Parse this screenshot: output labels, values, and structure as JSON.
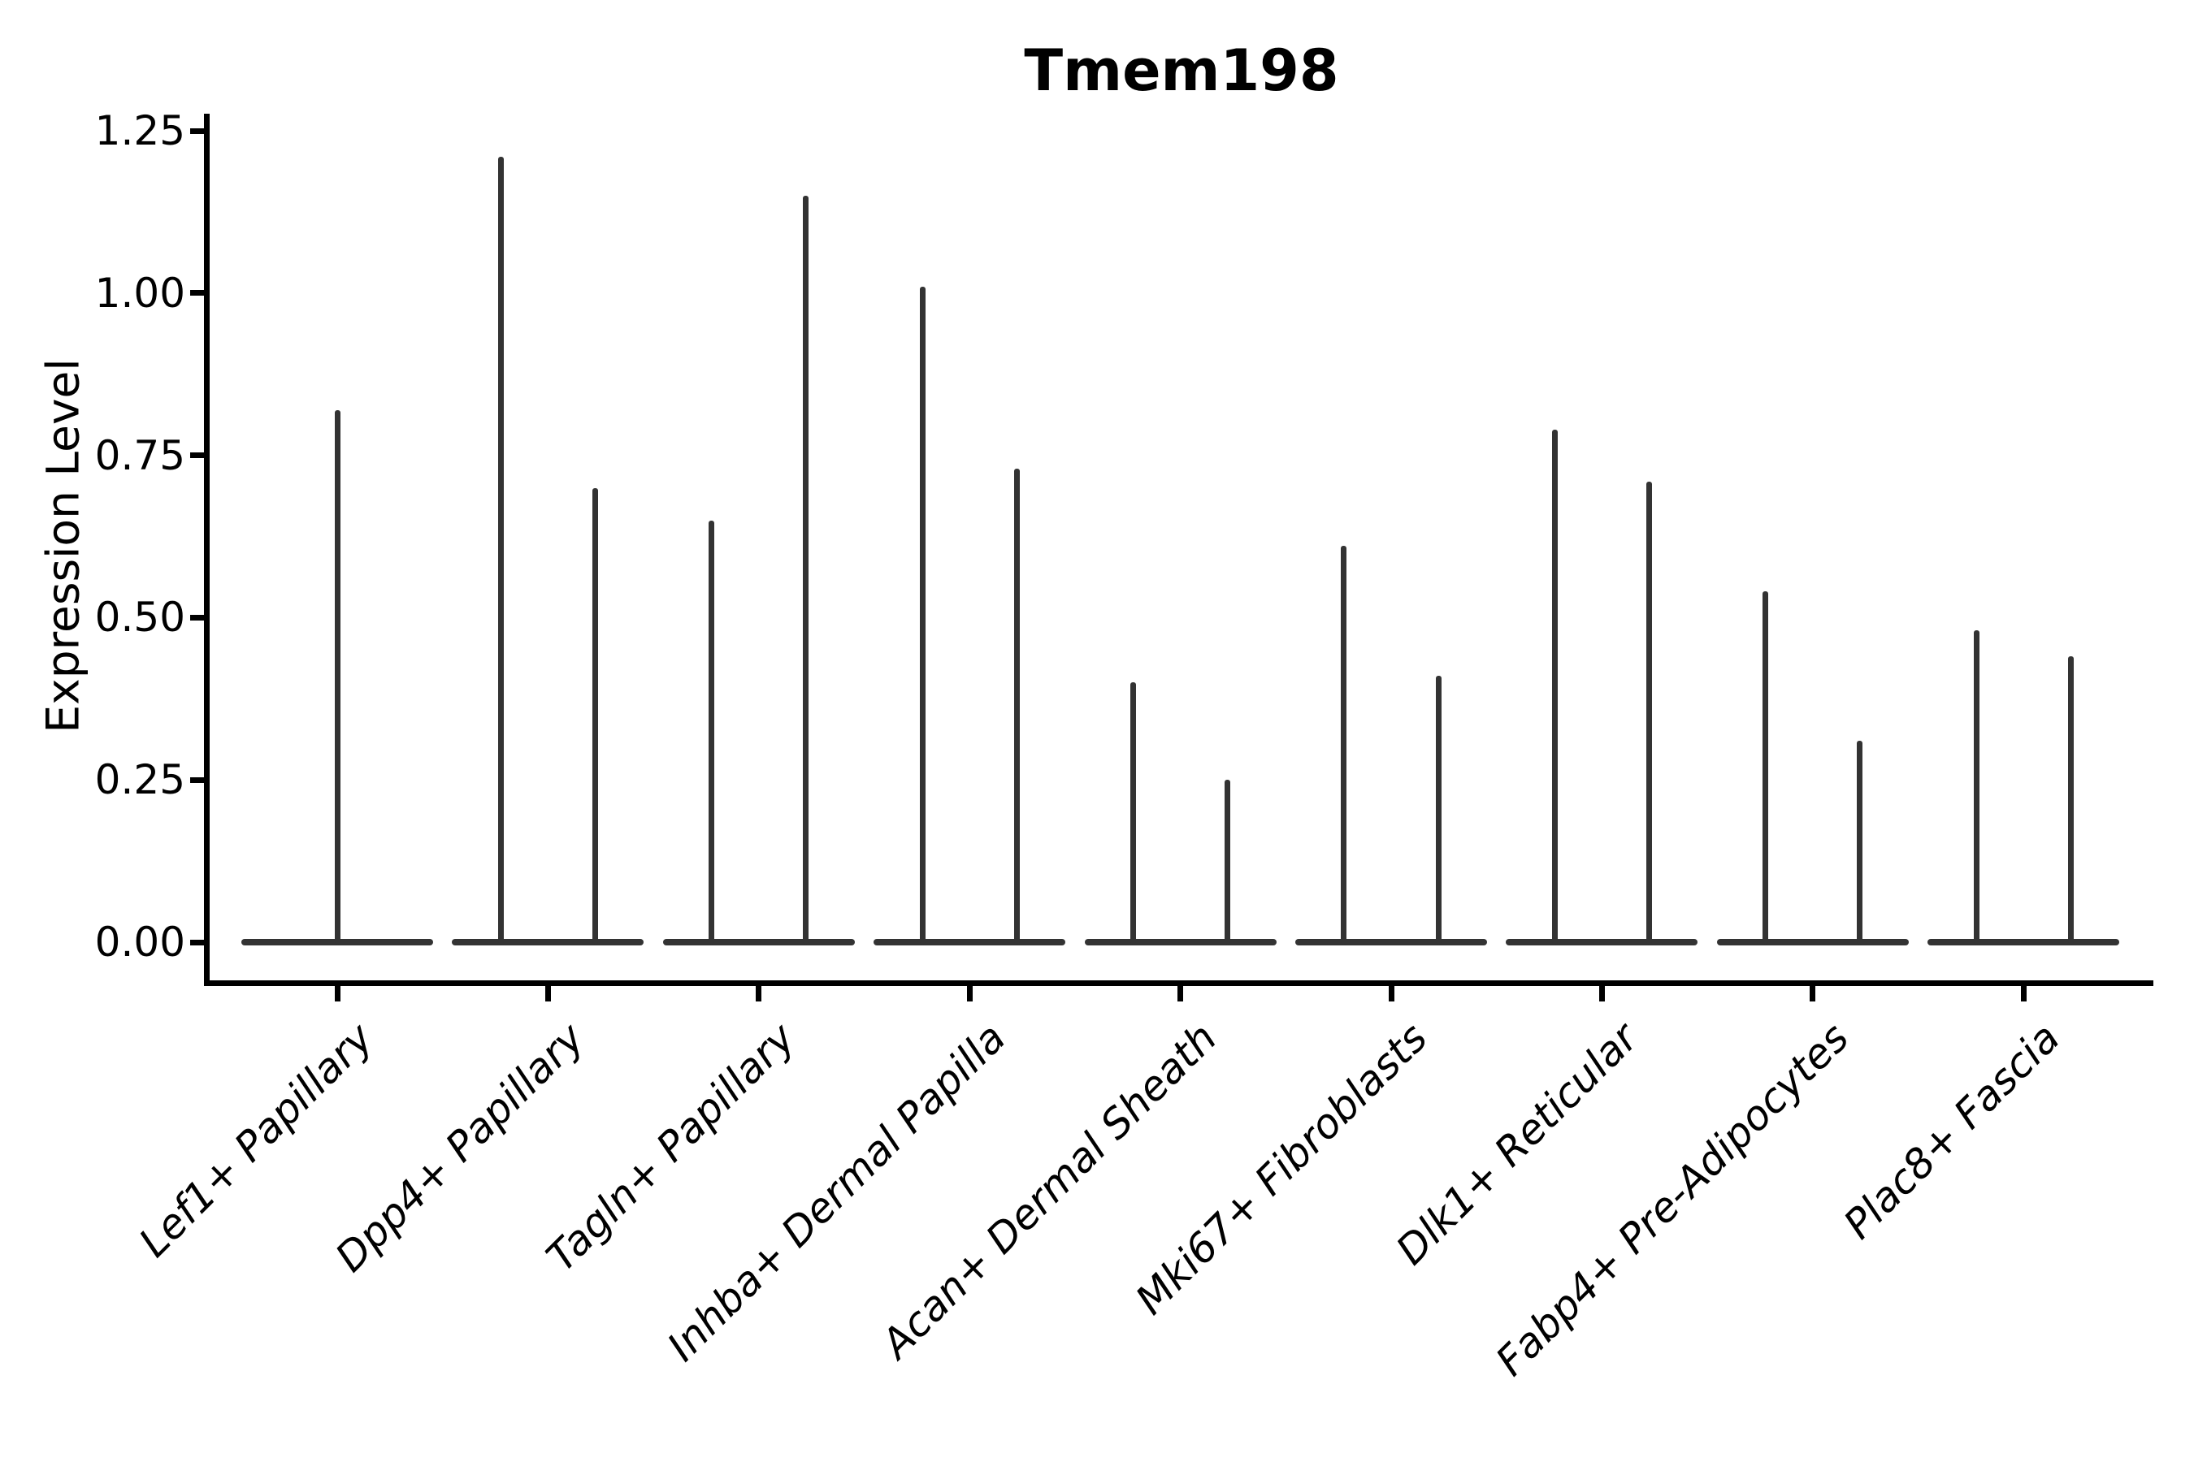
{
  "chart_data": {
    "type": "violin",
    "title": "Tmem198",
    "ylabel": "Expression Level",
    "xlabel": "",
    "ylim": [
      -0.06,
      1.28
    ],
    "grid": false,
    "legend": "none",
    "yticks": {
      "labels": [
        "0.00",
        "0.25",
        "0.50",
        "0.75",
        "1.00",
        "1.25"
      ],
      "values": [
        0.0,
        0.25,
        0.5,
        0.75,
        1.0,
        1.25
      ]
    },
    "categories": [
      "Lef1+ Papillary",
      "Dpp4+ Papillary",
      "Tagln+ Papillary",
      "Inhba+ Dermal Papilla",
      "Acan+ Dermal Sheath",
      "Mki67+ Fibroblasts",
      "Dlk1+ Reticular",
      "Fabp4+ Pre-Adipocytes",
      "Plac8+ Fascia"
    ],
    "baseline_value": 0,
    "violins": [
      {
        "category": "Lef1+ Papillary",
        "spikes": [
          {
            "offset_frac": 0,
            "max": 0.82
          }
        ]
      },
      {
        "category": "Dpp4+ Papillary",
        "spikes": [
          {
            "offset_frac": -0.224,
            "max": 1.21
          },
          {
            "offset_frac": 0.224,
            "max": 0.7
          }
        ]
      },
      {
        "category": "Tagln+ Papillary",
        "spikes": [
          {
            "offset_frac": -0.224,
            "max": 0.65
          },
          {
            "offset_frac": 0.224,
            "max": 1.15
          }
        ]
      },
      {
        "category": "Inhba+ Dermal Papilla",
        "spikes": [
          {
            "offset_frac": -0.224,
            "max": 1.01
          },
          {
            "offset_frac": 0.224,
            "max": 0.73
          }
        ]
      },
      {
        "category": "Acan+ Dermal Sheath",
        "spikes": [
          {
            "offset_frac": -0.224,
            "max": 0.4
          },
          {
            "offset_frac": 0.224,
            "max": 0.25
          }
        ]
      },
      {
        "category": "Mki67+ Fibroblasts",
        "spikes": [
          {
            "offset_frac": -0.224,
            "max": 0.61
          },
          {
            "offset_frac": 0.224,
            "max": 0.41
          }
        ]
      },
      {
        "category": "Dlk1+ Reticular",
        "spikes": [
          {
            "offset_frac": -0.224,
            "max": 0.79
          },
          {
            "offset_frac": 0.224,
            "max": 0.71
          }
        ]
      },
      {
        "category": "Fabp4+ Pre-Adipocytes",
        "spikes": [
          {
            "offset_frac": -0.224,
            "max": 0.54
          },
          {
            "offset_frac": 0.224,
            "max": 0.31
          }
        ]
      },
      {
        "category": "Plac8+ Fascia",
        "spikes": [
          {
            "offset_frac": -0.224,
            "max": 0.48
          },
          {
            "offset_frac": 0.224,
            "max": 0.44
          }
        ]
      }
    ],
    "colors": {
      "violin": "#333333",
      "axis": "#000000",
      "text": "#000000",
      "background": "#ffffff"
    }
  }
}
